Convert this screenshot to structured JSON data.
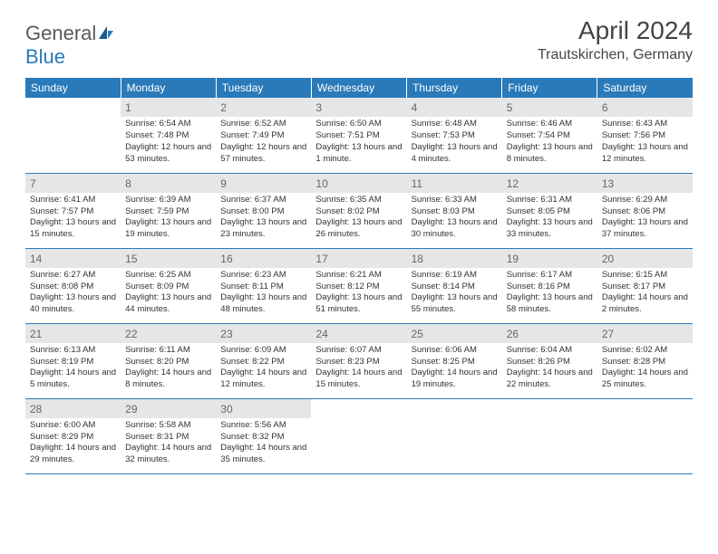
{
  "logo": {
    "text1": "General",
    "text2": "Blue"
  },
  "title": "April 2024",
  "location": "Trautskirchen, Germany",
  "weekdays": [
    "Sunday",
    "Monday",
    "Tuesday",
    "Wednesday",
    "Thursday",
    "Friday",
    "Saturday"
  ],
  "colors": {
    "header_bg": "#2a7ab9",
    "header_text": "#ffffff",
    "day_num": "#666666",
    "body_text": "#333333",
    "shaded_bg": "#e6e6e6",
    "row_border": "#2a7ab9",
    "logo_gray": "#5a5a5a",
    "logo_blue": "#2a7ab9"
  },
  "fonts": {
    "title_size": 28,
    "location_size": 16,
    "weekday_size": 12,
    "daynum_size": 12,
    "info_size": 9.5
  },
  "first_day_column": 1,
  "days": [
    {
      "n": 1,
      "sunrise": "6:54 AM",
      "sunset": "7:48 PM",
      "daylight": "12 hours and 53 minutes."
    },
    {
      "n": 2,
      "sunrise": "6:52 AM",
      "sunset": "7:49 PM",
      "daylight": "12 hours and 57 minutes."
    },
    {
      "n": 3,
      "sunrise": "6:50 AM",
      "sunset": "7:51 PM",
      "daylight": "13 hours and 1 minute."
    },
    {
      "n": 4,
      "sunrise": "6:48 AM",
      "sunset": "7:53 PM",
      "daylight": "13 hours and 4 minutes."
    },
    {
      "n": 5,
      "sunrise": "6:46 AM",
      "sunset": "7:54 PM",
      "daylight": "13 hours and 8 minutes."
    },
    {
      "n": 6,
      "sunrise": "6:43 AM",
      "sunset": "7:56 PM",
      "daylight": "13 hours and 12 minutes."
    },
    {
      "n": 7,
      "sunrise": "6:41 AM",
      "sunset": "7:57 PM",
      "daylight": "13 hours and 15 minutes."
    },
    {
      "n": 8,
      "sunrise": "6:39 AM",
      "sunset": "7:59 PM",
      "daylight": "13 hours and 19 minutes."
    },
    {
      "n": 9,
      "sunrise": "6:37 AM",
      "sunset": "8:00 PM",
      "daylight": "13 hours and 23 minutes."
    },
    {
      "n": 10,
      "sunrise": "6:35 AM",
      "sunset": "8:02 PM",
      "daylight": "13 hours and 26 minutes."
    },
    {
      "n": 11,
      "sunrise": "6:33 AM",
      "sunset": "8:03 PM",
      "daylight": "13 hours and 30 minutes."
    },
    {
      "n": 12,
      "sunrise": "6:31 AM",
      "sunset": "8:05 PM",
      "daylight": "13 hours and 33 minutes."
    },
    {
      "n": 13,
      "sunrise": "6:29 AM",
      "sunset": "8:06 PM",
      "daylight": "13 hours and 37 minutes."
    },
    {
      "n": 14,
      "sunrise": "6:27 AM",
      "sunset": "8:08 PM",
      "daylight": "13 hours and 40 minutes."
    },
    {
      "n": 15,
      "sunrise": "6:25 AM",
      "sunset": "8:09 PM",
      "daylight": "13 hours and 44 minutes."
    },
    {
      "n": 16,
      "sunrise": "6:23 AM",
      "sunset": "8:11 PM",
      "daylight": "13 hours and 48 minutes."
    },
    {
      "n": 17,
      "sunrise": "6:21 AM",
      "sunset": "8:12 PM",
      "daylight": "13 hours and 51 minutes."
    },
    {
      "n": 18,
      "sunrise": "6:19 AM",
      "sunset": "8:14 PM",
      "daylight": "13 hours and 55 minutes."
    },
    {
      "n": 19,
      "sunrise": "6:17 AM",
      "sunset": "8:16 PM",
      "daylight": "13 hours and 58 minutes."
    },
    {
      "n": 20,
      "sunrise": "6:15 AM",
      "sunset": "8:17 PM",
      "daylight": "14 hours and 2 minutes."
    },
    {
      "n": 21,
      "sunrise": "6:13 AM",
      "sunset": "8:19 PM",
      "daylight": "14 hours and 5 minutes."
    },
    {
      "n": 22,
      "sunrise": "6:11 AM",
      "sunset": "8:20 PM",
      "daylight": "14 hours and 8 minutes."
    },
    {
      "n": 23,
      "sunrise": "6:09 AM",
      "sunset": "8:22 PM",
      "daylight": "14 hours and 12 minutes."
    },
    {
      "n": 24,
      "sunrise": "6:07 AM",
      "sunset": "8:23 PM",
      "daylight": "14 hours and 15 minutes."
    },
    {
      "n": 25,
      "sunrise": "6:06 AM",
      "sunset": "8:25 PM",
      "daylight": "14 hours and 19 minutes."
    },
    {
      "n": 26,
      "sunrise": "6:04 AM",
      "sunset": "8:26 PM",
      "daylight": "14 hours and 22 minutes."
    },
    {
      "n": 27,
      "sunrise": "6:02 AM",
      "sunset": "8:28 PM",
      "daylight": "14 hours and 25 minutes."
    },
    {
      "n": 28,
      "sunrise": "6:00 AM",
      "sunset": "8:29 PM",
      "daylight": "14 hours and 29 minutes."
    },
    {
      "n": 29,
      "sunrise": "5:58 AM",
      "sunset": "8:31 PM",
      "daylight": "14 hours and 32 minutes."
    },
    {
      "n": 30,
      "sunrise": "5:56 AM",
      "sunset": "8:32 PM",
      "daylight": "14 hours and 35 minutes."
    }
  ]
}
